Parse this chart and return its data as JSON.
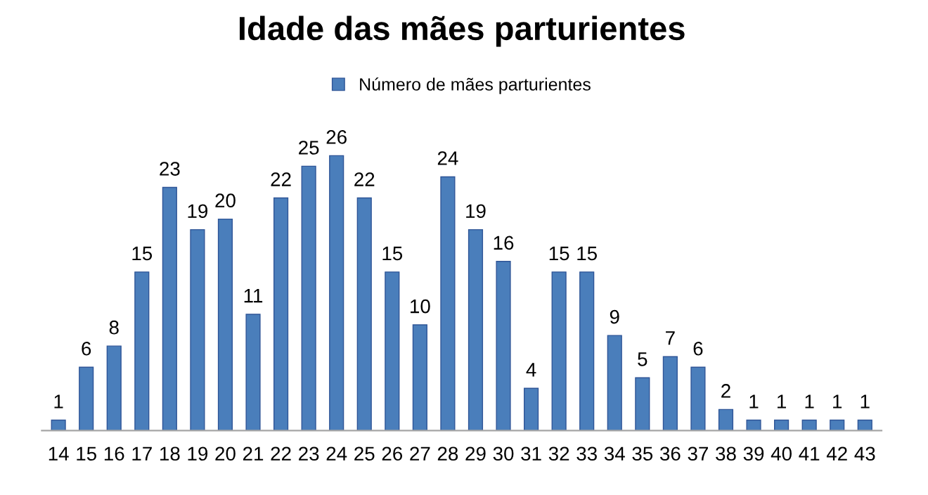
{
  "chart_data": {
    "type": "bar",
    "title": "Idade das mães parturientes",
    "categories": [
      "14",
      "15",
      "16",
      "17",
      "18",
      "19",
      "20",
      "21",
      "22",
      "23",
      "24",
      "25",
      "26",
      "27",
      "28",
      "29",
      "30",
      "31",
      "32",
      "33",
      "34",
      "35",
      "36",
      "37",
      "38",
      "39",
      "40",
      "41",
      "42",
      "43"
    ],
    "series": [
      {
        "name": "Número de mães parturientes",
        "color": "#4a7ebb",
        "values": [
          1,
          6,
          8,
          15,
          23,
          19,
          20,
          11,
          22,
          25,
          26,
          22,
          15,
          10,
          24,
          19,
          16,
          4,
          15,
          15,
          9,
          5,
          7,
          6,
          2,
          1,
          1,
          1,
          1,
          1
        ]
      }
    ],
    "data_labels": true,
    "legend": "top",
    "grid": false
  }
}
